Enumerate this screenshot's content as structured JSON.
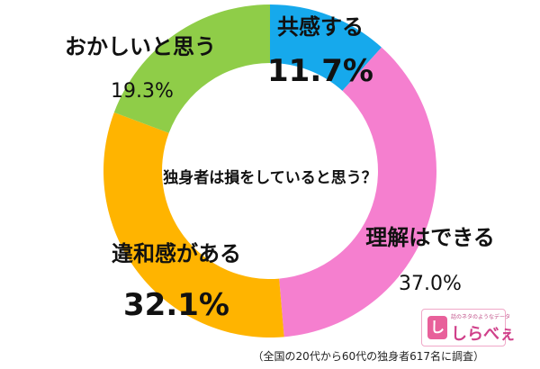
{
  "chart_data": {
    "type": "pie",
    "title": "独身者は損をしていると思う？",
    "categories": [
      "共感する",
      "理解はできる",
      "違和感がある",
      "おかしいと思う"
    ],
    "values": [
      11.7,
      37.0,
      32.1,
      19.3
    ],
    "value_labels": [
      "11.7%",
      "37.0%",
      "32.1%",
      "19.3%"
    ],
    "colors": [
      "#16a9ec",
      "#f57fcf",
      "#ffb400",
      "#8fcd48"
    ]
  },
  "logo": {
    "mark": "し",
    "tagline": "話のネタのようなデータ",
    "text": "しらべぇ"
  },
  "footnote": "（全国の20代から60代の独身者617名に調査）"
}
